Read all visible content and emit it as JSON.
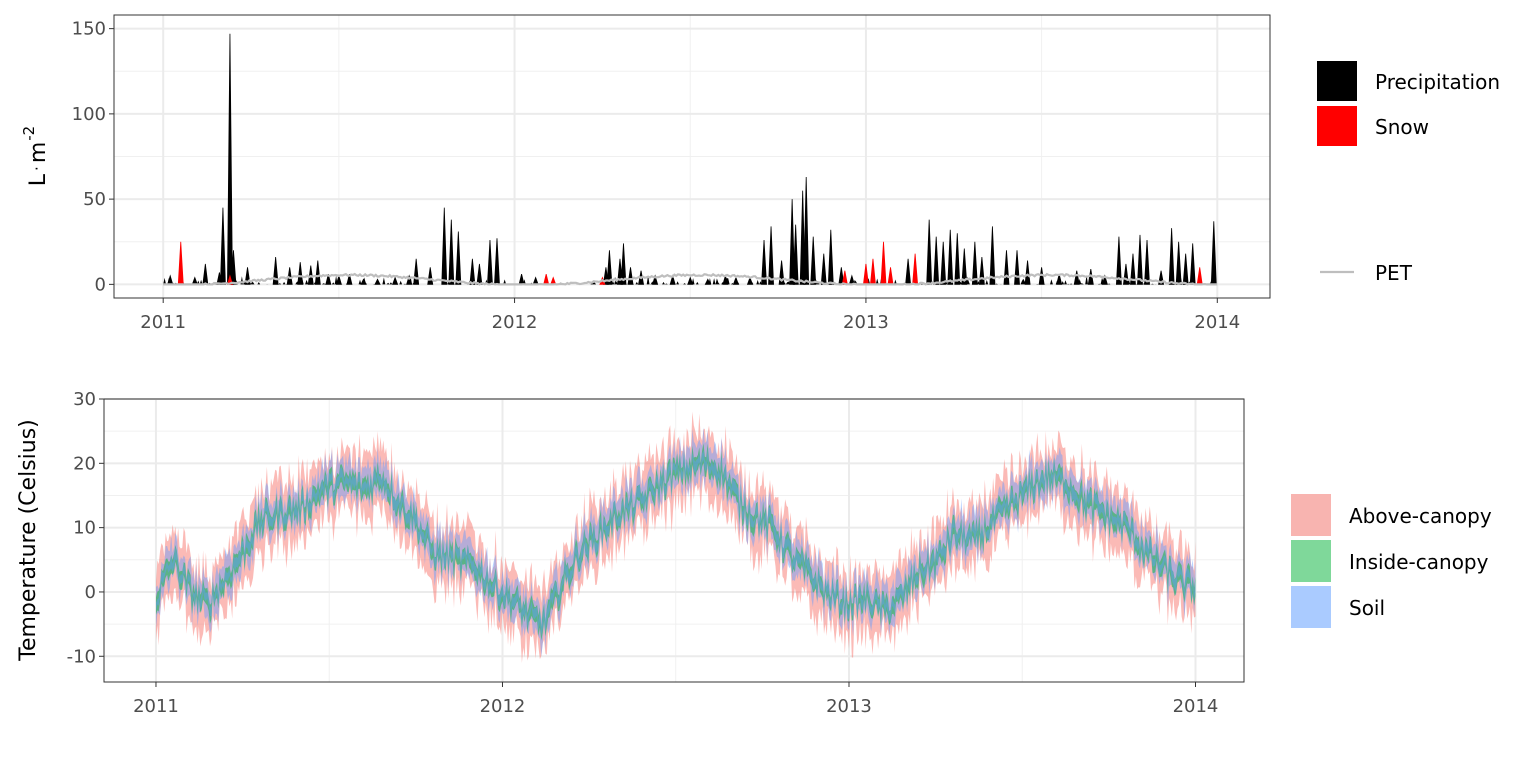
{
  "chart_data": [
    {
      "type": "area",
      "xlabel": "",
      "ylabel_parts": [
        "L",
        "·",
        "m",
        "-2"
      ],
      "ylim": [
        -8,
        158
      ],
      "xlim": [
        2010.86,
        2014.15
      ],
      "y_ticks": [
        0,
        50,
        100,
        150
      ],
      "y_tick_labels": [
        "0",
        "50",
        "100",
        "150"
      ],
      "x_ticks": [
        2011,
        2012,
        2013,
        2014
      ],
      "x_tick_labels": [
        "2011",
        "2012",
        "2013",
        "2014"
      ],
      "grid": true,
      "legend_position": "right",
      "legend": [
        {
          "label": "Precipitation",
          "color": "#000000",
          "kind": "fill"
        },
        {
          "label": "Snow",
          "color": "#ff0000",
          "kind": "fill"
        },
        {
          "label": "PET",
          "color": "#bebebe",
          "kind": "line"
        }
      ],
      "series": [
        {
          "name": "Precipitation",
          "color": "#000000",
          "points": [
            [
              2011.02,
              5
            ],
            [
              2011.05,
              8
            ],
            [
              2011.09,
              4
            ],
            [
              2011.12,
              12
            ],
            [
              2011.16,
              7
            ],
            [
              2011.17,
              45
            ],
            [
              2011.19,
              147
            ],
            [
              2011.2,
              20
            ],
            [
              2011.24,
              10
            ],
            [
              2011.32,
              16
            ],
            [
              2011.36,
              10
            ],
            [
              2011.39,
              13
            ],
            [
              2011.42,
              11
            ],
            [
              2011.44,
              14
            ],
            [
              2011.47,
              6
            ],
            [
              2011.5,
              5
            ],
            [
              2011.53,
              6
            ],
            [
              2011.57,
              3
            ],
            [
              2011.61,
              3
            ],
            [
              2011.66,
              4
            ],
            [
              2011.7,
              5
            ],
            [
              2011.72,
              15
            ],
            [
              2011.76,
              10
            ],
            [
              2011.8,
              45
            ],
            [
              2011.82,
              38
            ],
            [
              2011.84,
              31
            ],
            [
              2011.88,
              15
            ],
            [
              2011.9,
              12
            ],
            [
              2011.93,
              26
            ],
            [
              2011.95,
              27
            ],
            [
              2012.02,
              6
            ],
            [
              2012.06,
              4
            ],
            [
              2012.26,
              10
            ],
            [
              2012.27,
              20
            ],
            [
              2012.3,
              15
            ],
            [
              2012.31,
              24
            ],
            [
              2012.33,
              10
            ],
            [
              2012.36,
              8
            ],
            [
              2012.4,
              5
            ],
            [
              2012.45,
              5
            ],
            [
              2012.5,
              4
            ],
            [
              2012.55,
              3
            ],
            [
              2012.6,
              5
            ],
            [
              2012.63,
              4
            ],
            [
              2012.67,
              4
            ],
            [
              2012.71,
              26
            ],
            [
              2012.73,
              34
            ],
            [
              2012.76,
              14
            ],
            [
              2012.79,
              50
            ],
            [
              2012.8,
              35
            ],
            [
              2012.82,
              55
            ],
            [
              2012.83,
              63
            ],
            [
              2012.85,
              28
            ],
            [
              2012.88,
              18
            ],
            [
              2012.9,
              32
            ],
            [
              2012.93,
              10
            ],
            [
              2012.96,
              5
            ],
            [
              2013.12,
              15
            ],
            [
              2013.18,
              38
            ],
            [
              2013.2,
              28
            ],
            [
              2013.22,
              25
            ],
            [
              2013.24,
              32
            ],
            [
              2013.26,
              30
            ],
            [
              2013.28,
              21
            ],
            [
              2013.31,
              25
            ],
            [
              2013.33,
              16
            ],
            [
              2013.36,
              34
            ],
            [
              2013.4,
              20
            ],
            [
              2013.43,
              20
            ],
            [
              2013.46,
              14
            ],
            [
              2013.5,
              10
            ],
            [
              2013.55,
              6
            ],
            [
              2013.6,
              8
            ],
            [
              2013.64,
              9
            ],
            [
              2013.68,
              5
            ],
            [
              2013.72,
              28
            ],
            [
              2013.74,
              12
            ],
            [
              2013.76,
              18
            ],
            [
              2013.78,
              29
            ],
            [
              2013.8,
              26
            ],
            [
              2013.84,
              8
            ],
            [
              2013.87,
              33
            ],
            [
              2013.89,
              25
            ],
            [
              2013.91,
              18
            ],
            [
              2013.93,
              24
            ],
            [
              2013.99,
              37
            ]
          ]
        },
        {
          "name": "Snow",
          "color": "#ff0000",
          "points": [
            [
              2011.05,
              25
            ],
            [
              2011.19,
              5
            ],
            [
              2012.09,
              6
            ],
            [
              2012.11,
              4
            ],
            [
              2012.25,
              4
            ],
            [
              2012.94,
              8
            ],
            [
              2013.0,
              12
            ],
            [
              2013.02,
              15
            ],
            [
              2013.05,
              25
            ],
            [
              2013.07,
              10
            ],
            [
              2013.14,
              18
            ],
            [
              2013.95,
              10
            ]
          ]
        },
        {
          "name": "PET",
          "color": "#bebebe",
          "amplitude": 3,
          "offset": 2.5
        }
      ]
    },
    {
      "type": "area",
      "xlabel": "",
      "ylabel": "Temperature (Celsius)",
      "ylim": [
        -14,
        30
      ],
      "xlim": [
        2010.85,
        2014.14
      ],
      "y_ticks": [
        -10,
        0,
        10,
        20,
        30
      ],
      "y_tick_labels": [
        "-10",
        "0",
        "10",
        "20",
        "30"
      ],
      "x_ticks": [
        2011,
        2012,
        2013,
        2014
      ],
      "x_tick_labels": [
        "2011",
        "2012",
        "2013",
        "2014"
      ],
      "grid": true,
      "legend_position": "right",
      "legend": [
        {
          "label": "Above-canopy",
          "color": "#f8b4b0"
        },
        {
          "label": "Inside-canopy",
          "color": "#7fd89a"
        },
        {
          "label": "Soil",
          "color": "#aacbff"
        }
      ],
      "series": [
        {
          "name": "Above-canopy",
          "color": "#f8766d",
          "range_min": [
            -12,
            14
          ],
          "range_max": [
            10,
            28
          ]
        },
        {
          "name": "Inside-canopy",
          "color": "#00ba38",
          "range_min": [
            -7,
            18
          ],
          "range_max": [
            0,
            22
          ]
        },
        {
          "name": "Soil",
          "color": "#619cff",
          "range_min": [
            -6,
            16
          ],
          "range_max": [
            7,
            27
          ]
        }
      ],
      "anchors": [
        [
          2011.0,
          -1
        ],
        [
          2011.05,
          5
        ],
        [
          2011.1,
          0
        ],
        [
          2011.15,
          -2
        ],
        [
          2011.2,
          2
        ],
        [
          2011.25,
          6
        ],
        [
          2011.3,
          11
        ],
        [
          2011.35,
          12
        ],
        [
          2011.42,
          13
        ],
        [
          2011.48,
          16
        ],
        [
          2011.55,
          17
        ],
        [
          2011.6,
          16
        ],
        [
          2011.65,
          18
        ],
        [
          2011.7,
          14
        ],
        [
          2011.75,
          11
        ],
        [
          2011.8,
          6
        ],
        [
          2011.86,
          5
        ],
        [
          2011.92,
          4
        ],
        [
          2011.97,
          1
        ],
        [
          2012.02,
          -1
        ],
        [
          2012.08,
          -4
        ],
        [
          2012.12,
          -5
        ],
        [
          2012.16,
          0
        ],
        [
          2012.22,
          6
        ],
        [
          2012.28,
          9
        ],
        [
          2012.33,
          12
        ],
        [
          2012.4,
          14
        ],
        [
          2012.46,
          17
        ],
        [
          2012.52,
          19
        ],
        [
          2012.58,
          20
        ],
        [
          2012.63,
          19
        ],
        [
          2012.68,
          14
        ],
        [
          2012.72,
          12
        ],
        [
          2012.78,
          10
        ],
        [
          2012.84,
          5
        ],
        [
          2012.88,
          3
        ],
        [
          2012.93,
          0
        ],
        [
          2013.0,
          -2
        ],
        [
          2013.05,
          -1
        ],
        [
          2013.1,
          -3
        ],
        [
          2013.15,
          -1
        ],
        [
          2013.2,
          3
        ],
        [
          2013.26,
          5
        ],
        [
          2013.3,
          9
        ],
        [
          2013.36,
          8
        ],
        [
          2013.42,
          11
        ],
        [
          2013.48,
          14
        ],
        [
          2013.54,
          17
        ],
        [
          2013.58,
          18
        ],
        [
          2013.63,
          17
        ],
        [
          2013.68,
          14
        ],
        [
          2013.74,
          12
        ],
        [
          2013.8,
          10
        ],
        [
          2013.86,
          6
        ],
        [
          2013.92,
          3
        ],
        [
          2013.97,
          1
        ],
        [
          2014.0,
          1
        ]
      ]
    }
  ]
}
